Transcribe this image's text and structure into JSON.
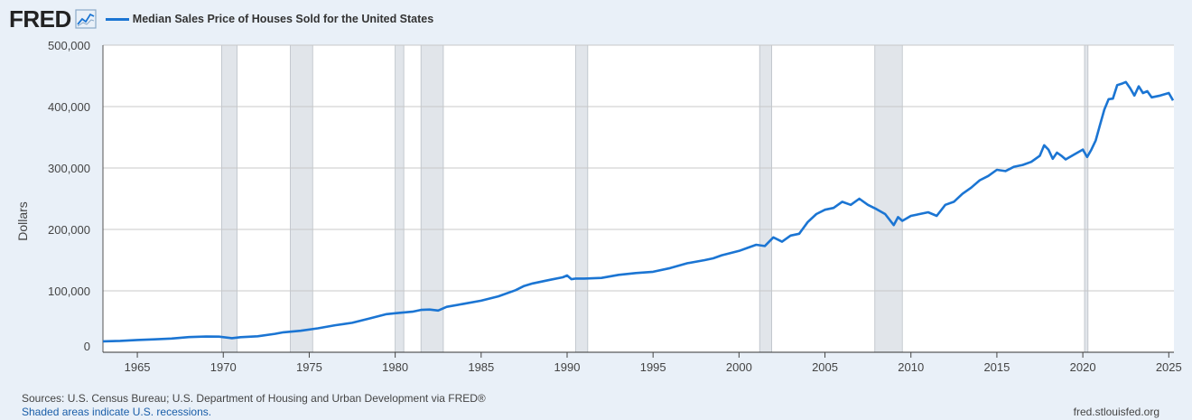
{
  "header": {
    "logo": "FRED",
    "logo_icon": "line-chart-icon",
    "legend_label": "Median Sales Price of Houses Sold for the United States",
    "series_color": "#1b75d3"
  },
  "footer": {
    "sources": "Sources: U.S. Census Bureau; U.S. Department of Housing and Urban Development via FRED®",
    "recession_note": "Shaded areas indicate U.S. recessions.",
    "site": "fred.stlouisfed.org"
  },
  "chart_data": {
    "type": "line",
    "title": "",
    "xlabel": "",
    "ylabel": "Dollars",
    "xlim": [
      1963.0,
      2025.3
    ],
    "ylim": [
      0,
      500000
    ],
    "x_ticks": [
      1965,
      1970,
      1975,
      1980,
      1985,
      1990,
      1995,
      2000,
      2005,
      2010,
      2015,
      2020,
      2025
    ],
    "y_ticks": [
      0,
      100000,
      200000,
      300000,
      400000,
      500000
    ],
    "y_tick_labels": [
      "0",
      "100,000",
      "200,000",
      "300,000",
      "400,000",
      "500,000"
    ],
    "grid": "horizontal",
    "recessions": [
      [
        1969.9,
        1970.8
      ],
      [
        1973.9,
        1975.2
      ],
      [
        1980.0,
        1980.5
      ],
      [
        1981.5,
        1982.8
      ],
      [
        1990.5,
        1991.2
      ],
      [
        2001.2,
        2001.9
      ],
      [
        2007.9,
        2009.5
      ],
      [
        2020.1,
        2020.3
      ]
    ],
    "series": [
      {
        "name": "Median Sales Price of Houses Sold for the United States",
        "x": [
          1963.0,
          1964.0,
          1965.0,
          1966.0,
          1967.0,
          1968.0,
          1969.0,
          1969.75,
          1970.5,
          1971.0,
          1972.0,
          1973.0,
          1973.5,
          1974.5,
          1975.5,
          1976.5,
          1977.5,
          1978.5,
          1979.5,
          1980.0,
          1981.0,
          1981.5,
          1982.0,
          1982.5,
          1983.0,
          1984.0,
          1985.0,
          1986.0,
          1987.0,
          1987.5,
          1988.0,
          1989.0,
          1989.75,
          1990.0,
          1990.25,
          1990.5,
          1991.0,
          1992.0,
          1993.0,
          1994.0,
          1995.0,
          1996.0,
          1997.0,
          1998.0,
          1998.5,
          1999.0,
          2000.0,
          2000.5,
          2001.0,
          2001.5,
          2002.0,
          2002.5,
          2003.0,
          2003.5,
          2004.0,
          2004.5,
          2005.0,
          2005.5,
          2006.0,
          2006.5,
          2007.0,
          2007.5,
          2008.0,
          2008.5,
          2009.0,
          2009.25,
          2009.5,
          2009.75,
          2010.0,
          2010.5,
          2011.0,
          2011.5,
          2012.0,
          2012.5,
          2013.0,
          2013.5,
          2014.0,
          2014.5,
          2015.0,
          2015.5,
          2016.0,
          2016.5,
          2017.0,
          2017.5,
          2017.75,
          2018.0,
          2018.25,
          2018.5,
          2018.75,
          2019.0,
          2019.5,
          2020.0,
          2020.25,
          2020.5,
          2020.75,
          2021.0,
          2021.25,
          2021.5,
          2021.75,
          2022.0,
          2022.25,
          2022.5,
          2022.75,
          2023.0,
          2023.25,
          2023.5,
          2023.75,
          2024.0,
          2024.5,
          2025.0,
          2025.25
        ],
        "y": [
          17800,
          18500,
          20000,
          21000,
          22300,
          24700,
          25600,
          25500,
          23000,
          24500,
          26000,
          30000,
          32500,
          35000,
          39000,
          44000,
          48000,
          55000,
          62000,
          63500,
          66000,
          69000,
          69500,
          68000,
          74000,
          79000,
          84000,
          91000,
          101000,
          108000,
          112000,
          118000,
          122000,
          125000,
          119000,
          120000,
          120000,
          121000,
          126000,
          129000,
          131000,
          137000,
          145000,
          150000,
          153000,
          158000,
          165000,
          170000,
          175000,
          173000,
          187000,
          180000,
          190000,
          193000,
          212000,
          225000,
          232000,
          235000,
          245000,
          240000,
          250000,
          240000,
          233000,
          225000,
          207000,
          220000,
          214000,
          218000,
          222000,
          225000,
          228000,
          222000,
          240000,
          245000,
          258000,
          268000,
          280000,
          287000,
          297000,
          295000,
          302000,
          305000,
          310000,
          320000,
          337000,
          330000,
          315000,
          325000,
          320000,
          314000,
          322000,
          330000,
          318000,
          330000,
          345000,
          370000,
          395000,
          412000,
          413000,
          435000,
          437000,
          440000,
          430000,
          418000,
          433000,
          422000,
          425000,
          415000,
          418000,
          422000,
          410000
        ]
      }
    ]
  }
}
